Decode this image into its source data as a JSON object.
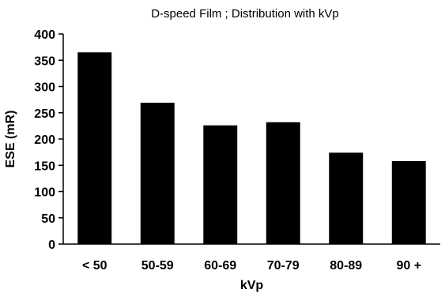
{
  "chart_data": {
    "type": "bar",
    "title": "D-speed Film ; Distribution with kVp",
    "xlabel": "kVp",
    "ylabel": "ESE (mR)",
    "categories": [
      "< 50",
      "50-59",
      "60-69",
      "70-79",
      "80-89",
      "90 +"
    ],
    "values": [
      365,
      269,
      226,
      232,
      174,
      158
    ],
    "ylim": [
      0,
      400
    ],
    "yticks": [
      0,
      50,
      100,
      150,
      200,
      250,
      300,
      350,
      400
    ],
    "grid": false,
    "legend": "none",
    "bar_color": "#000000"
  }
}
